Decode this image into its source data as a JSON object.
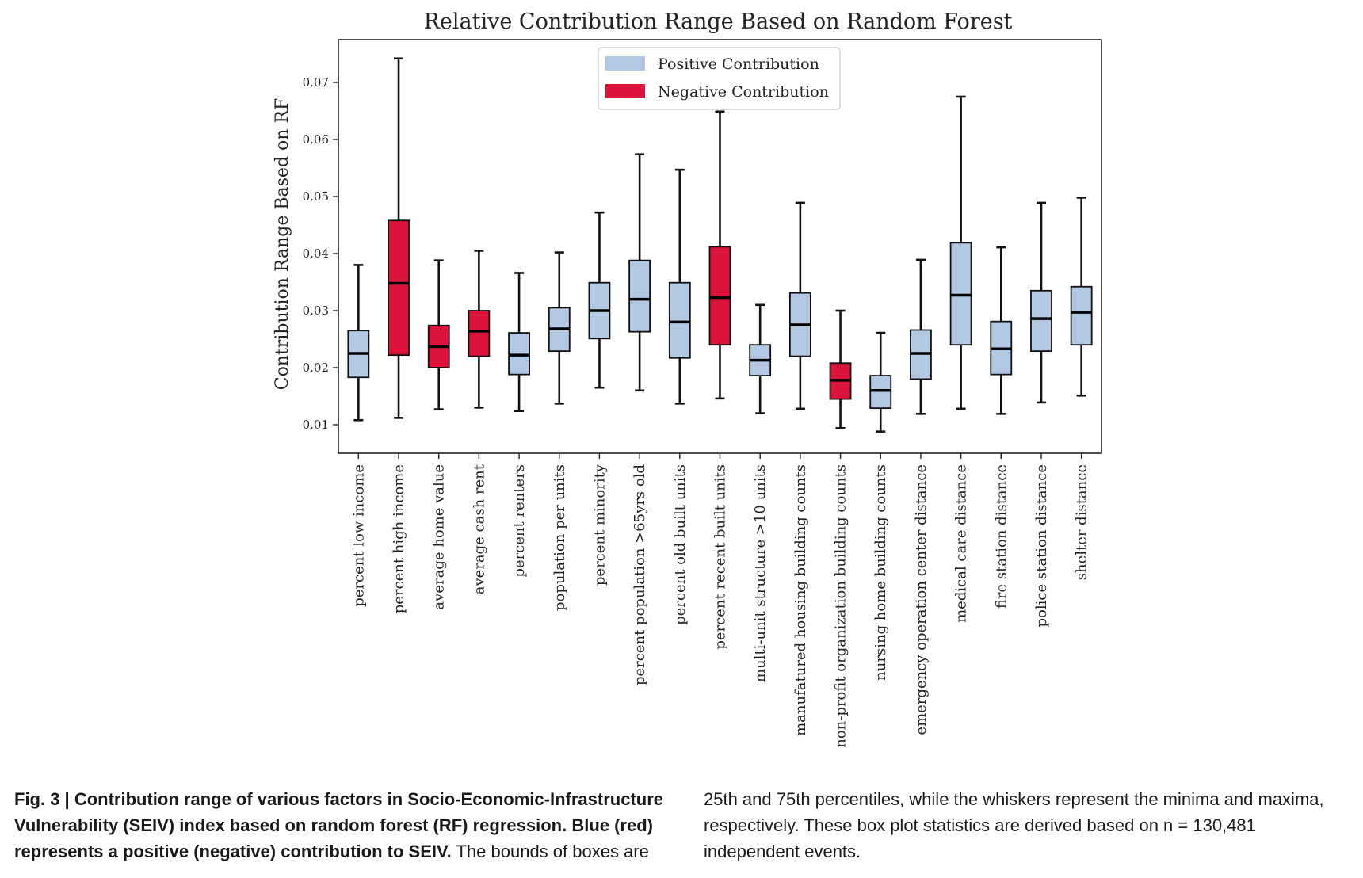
{
  "chart_data": {
    "type": "box",
    "title": "Relative Contribution Range Based on Random Forest",
    "ylabel": "Contribution Range Based on RF",
    "xlabel": "",
    "ylim": [
      0.005,
      0.0775
    ],
    "yticks": [
      "0.01",
      "0.02",
      "0.03",
      "0.04",
      "0.05",
      "0.06",
      "0.07"
    ],
    "grid": false,
    "legend_position": "top-center",
    "legend": [
      {
        "label": "Positive Contribution",
        "color": "#b3c8e3"
      },
      {
        "label": "Negative Contribution",
        "color": "#dc143c"
      }
    ],
    "colors": {
      "positive": "#b3c8e3",
      "negative": "#dc143c"
    },
    "categories": [
      "percent low income",
      "percent high income",
      "average home value",
      "average cash rent",
      "percent renters",
      "population per units",
      "percent minority",
      "percent population >65yrs old",
      "percent old built units",
      "percent recent built units",
      "multi-unit structure >10 units",
      "manufatured housing building counts",
      "non-profit organization building counts",
      "nursing home building counts",
      "emergency operation center distance",
      "medical care distance",
      "fire station distance",
      "police station distance",
      "shelter distance"
    ],
    "boxes": [
      {
        "min": 0.0108,
        "q1": 0.0183,
        "median": 0.0225,
        "q3": 0.0265,
        "max": 0.038,
        "contribution": "positive"
      },
      {
        "min": 0.0112,
        "q1": 0.0222,
        "median": 0.0348,
        "q3": 0.0458,
        "max": 0.0742,
        "contribution": "negative"
      },
      {
        "min": 0.0127,
        "q1": 0.02,
        "median": 0.0237,
        "q3": 0.0274,
        "max": 0.0388,
        "contribution": "negative"
      },
      {
        "min": 0.013,
        "q1": 0.022,
        "median": 0.0264,
        "q3": 0.03,
        "max": 0.0405,
        "contribution": "negative"
      },
      {
        "min": 0.0124,
        "q1": 0.0188,
        "median": 0.0222,
        "q3": 0.0261,
        "max": 0.0366,
        "contribution": "positive"
      },
      {
        "min": 0.0137,
        "q1": 0.0229,
        "median": 0.0268,
        "q3": 0.0305,
        "max": 0.0402,
        "contribution": "positive"
      },
      {
        "min": 0.0165,
        "q1": 0.0251,
        "median": 0.03,
        "q3": 0.0349,
        "max": 0.0472,
        "contribution": "positive"
      },
      {
        "min": 0.016,
        "q1": 0.0263,
        "median": 0.032,
        "q3": 0.0388,
        "max": 0.0574,
        "contribution": "positive"
      },
      {
        "min": 0.0137,
        "q1": 0.0217,
        "median": 0.028,
        "q3": 0.0349,
        "max": 0.0547,
        "contribution": "positive"
      },
      {
        "min": 0.0146,
        "q1": 0.024,
        "median": 0.0323,
        "q3": 0.0412,
        "max": 0.0649,
        "contribution": "negative"
      },
      {
        "min": 0.012,
        "q1": 0.0186,
        "median": 0.0213,
        "q3": 0.024,
        "max": 0.031,
        "contribution": "positive"
      },
      {
        "min": 0.0128,
        "q1": 0.022,
        "median": 0.0275,
        "q3": 0.0331,
        "max": 0.0489,
        "contribution": "positive"
      },
      {
        "min": 0.0094,
        "q1": 0.0145,
        "median": 0.0178,
        "q3": 0.0208,
        "max": 0.03,
        "contribution": "negative"
      },
      {
        "min": 0.0088,
        "q1": 0.0129,
        "median": 0.016,
        "q3": 0.0186,
        "max": 0.0261,
        "contribution": "positive"
      },
      {
        "min": 0.0119,
        "q1": 0.018,
        "median": 0.0225,
        "q3": 0.0266,
        "max": 0.0389,
        "contribution": "positive"
      },
      {
        "min": 0.0128,
        "q1": 0.024,
        "median": 0.0327,
        "q3": 0.0419,
        "max": 0.0675,
        "contribution": "positive"
      },
      {
        "min": 0.0119,
        "q1": 0.0188,
        "median": 0.0233,
        "q3": 0.0281,
        "max": 0.0411,
        "contribution": "positive"
      },
      {
        "min": 0.0139,
        "q1": 0.0229,
        "median": 0.0286,
        "q3": 0.0335,
        "max": 0.0489,
        "contribution": "positive"
      },
      {
        "min": 0.0151,
        "q1": 0.024,
        "median": 0.0297,
        "q3": 0.0342,
        "max": 0.0498,
        "contribution": "positive"
      }
    ]
  },
  "caption": {
    "bold": "Fig. 3 | Contribution range of various factors in Socio-Economic-Infrastructure Vulnerability (SEIV) index based on random forest (RF) regression. Blue (red) represents a positive (negative) contribution to SEIV.",
    "text_left": " The bounds of boxes are",
    "text_right": "25th and 75th percentiles, while the whiskers represent the minima and maxima, respectively. These box plot statistics are derived based on n = 130,481 independent events."
  }
}
